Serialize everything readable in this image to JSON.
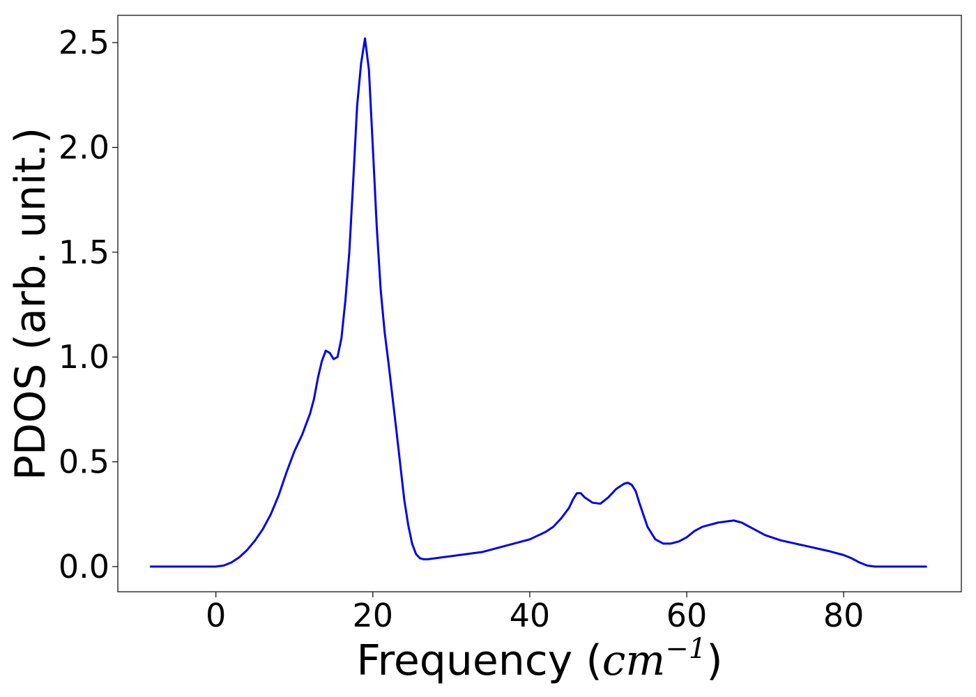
{
  "chart_data": {
    "type": "line",
    "title": "",
    "xlabel": "Frequency",
    "xlabel_unit": "cm",
    "xlabel_unit_exponent": "−1",
    "ylabel": "PDOS (arb. unit.)",
    "xlim": [
      -12.5,
      95
    ],
    "ylim": [
      -0.12,
      2.63
    ],
    "xticks": [
      0,
      20,
      40,
      60,
      80
    ],
    "xtick_labels": [
      "0",
      "20",
      "40",
      "60",
      "80"
    ],
    "yticks": [
      0.0,
      0.5,
      1.0,
      1.5,
      2.0,
      2.5
    ],
    "ytick_labels": [
      "0.0",
      "0.5",
      "1.0",
      "1.5",
      "2.0",
      "2.5"
    ],
    "grid": false,
    "legend": "none",
    "series": [
      {
        "color": "#0000ee",
        "x": [
          -8.3,
          -4,
          0,
          1,
          2,
          3,
          4,
          5,
          6,
          7,
          8,
          9,
          10,
          11,
          12,
          12.5,
          13,
          13.5,
          14,
          14.5,
          15,
          15.5,
          16,
          16.5,
          17,
          17.5,
          18,
          18.5,
          19,
          19.5,
          20,
          20.5,
          21,
          21.5,
          22,
          23,
          24,
          24.5,
          25,
          25.5,
          26,
          26.5,
          27,
          28,
          30,
          32,
          34,
          36,
          38,
          40,
          42,
          43,
          44,
          45,
          45.5,
          46,
          46.5,
          47,
          48,
          49,
          50,
          51,
          52,
          52.5,
          53,
          53.5,
          54,
          55,
          56,
          57,
          58,
          59,
          60,
          61,
          62,
          64,
          66,
          67,
          68,
          70,
          72,
          75,
          78,
          80,
          81,
          82,
          83,
          84,
          86,
          90.5
        ],
        "y": [
          0.0,
          0.0,
          0.0,
          0.005,
          0.02,
          0.045,
          0.08,
          0.125,
          0.18,
          0.25,
          0.34,
          0.45,
          0.55,
          0.63,
          0.73,
          0.8,
          0.9,
          0.98,
          1.03,
          1.02,
          0.99,
          1.0,
          1.09,
          1.27,
          1.5,
          1.84,
          2.2,
          2.4,
          2.52,
          2.37,
          2.0,
          1.62,
          1.32,
          1.12,
          0.97,
          0.65,
          0.32,
          0.2,
          0.11,
          0.06,
          0.04,
          0.035,
          0.035,
          0.04,
          0.05,
          0.06,
          0.07,
          0.09,
          0.11,
          0.13,
          0.165,
          0.19,
          0.23,
          0.28,
          0.32,
          0.35,
          0.35,
          0.33,
          0.305,
          0.3,
          0.33,
          0.37,
          0.395,
          0.4,
          0.39,
          0.36,
          0.3,
          0.19,
          0.13,
          0.11,
          0.11,
          0.12,
          0.14,
          0.17,
          0.19,
          0.21,
          0.22,
          0.21,
          0.19,
          0.15,
          0.125,
          0.1,
          0.075,
          0.055,
          0.04,
          0.02,
          0.005,
          0.0,
          0.0,
          0.0
        ]
      }
    ]
  }
}
